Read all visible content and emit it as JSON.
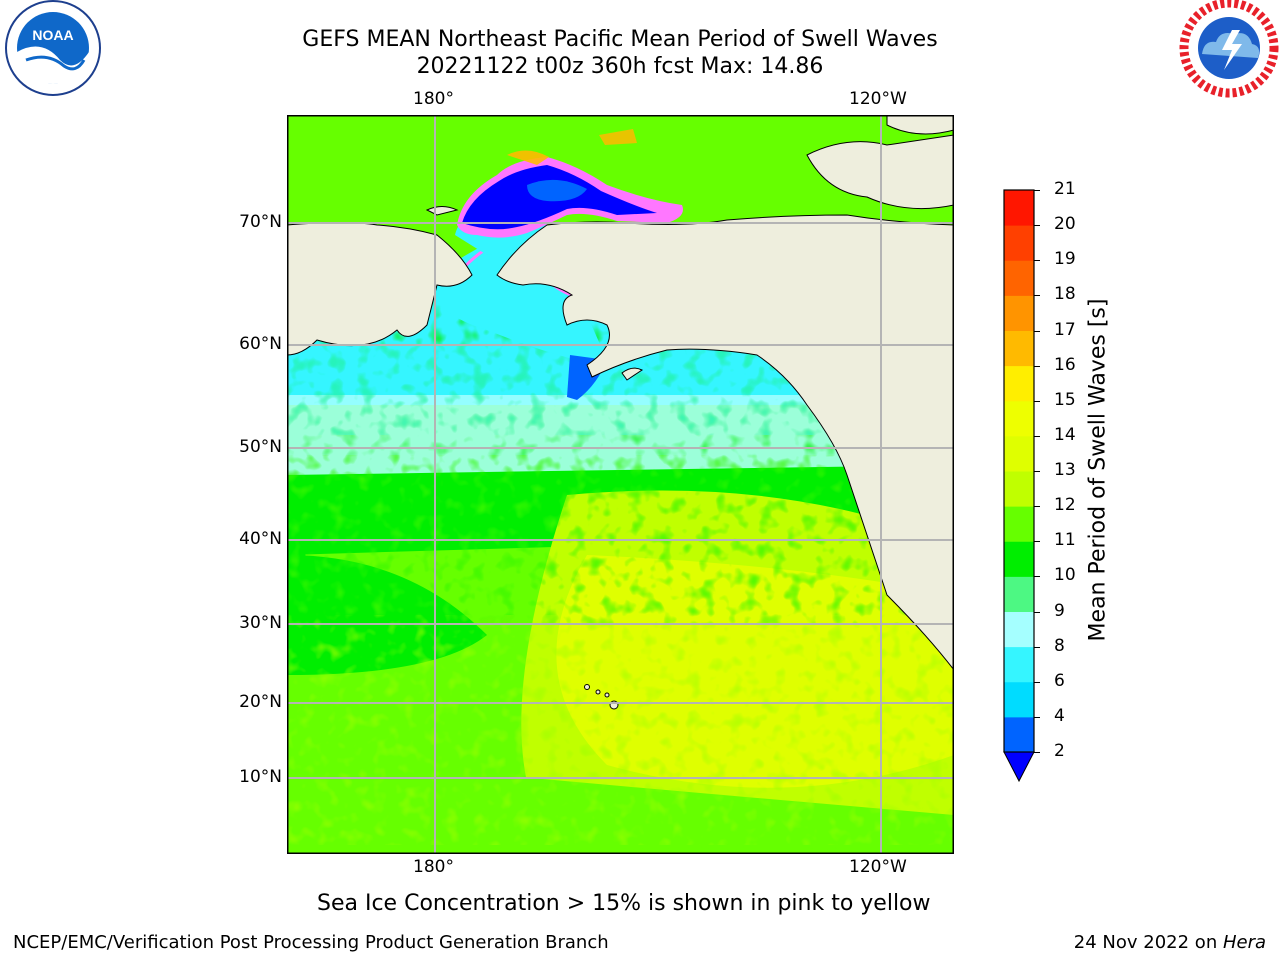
{
  "title": {
    "line1": "GEFS MEAN Northeast Pacific Mean Period of Swell Waves",
    "line2": "20221122 t00z 360h fcst   Max: 14.86"
  },
  "logos": {
    "left": {
      "name": "noaa-logo",
      "text": "NOAA"
    },
    "right": {
      "name": "national-weather-service-logo",
      "text": "NATIONAL WEATHER SERVICE"
    }
  },
  "map": {
    "region": "Northeast Pacific",
    "top_longitude_labels": [
      "180°",
      "120°W"
    ],
    "bottom_longitude_labels": [
      "180°",
      "120°W"
    ],
    "latitude_labels": [
      "70°N",
      "60°N",
      "50°N",
      "40°N",
      "30°N",
      "20°N",
      "10°N"
    ],
    "colors": {
      "land": "#eeeedd",
      "coastline": "#000000",
      "gridlines": "#b4b4b4",
      "sea_ice_fringe": "#ff77ff"
    }
  },
  "colorbar": {
    "label": "Mean Period of Swell Waves [s]",
    "ticks": [
      "2",
      "4",
      "6",
      "8",
      "9",
      "10",
      "11",
      "12",
      "13",
      "14",
      "15",
      "16",
      "17",
      "18",
      "19",
      "20",
      "21"
    ],
    "colors": [
      "#0064ff",
      "#00dcff",
      "#35f5ff",
      "#a5ffff",
      "#4df883",
      "#00ee00",
      "#66ff00",
      "#c0ff00",
      "#dfff00",
      "#eeff00",
      "#ffee00",
      "#ffba00",
      "#ff9400",
      "#ff6400",
      "#ff4000",
      "#ff1600"
    ],
    "under_color": "#0000ff"
  },
  "note": "Sea Ice Concentration > 15% is shown in pink to yellow",
  "footer": {
    "left": "NCEP/EMC/Verification Post Processing Product Generation Branch",
    "date": "24 Nov 2022 on ",
    "host": "Hera"
  }
}
